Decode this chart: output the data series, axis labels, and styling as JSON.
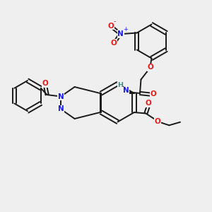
{
  "bg_color": "#efefef",
  "bond_color": "#1a1a1a",
  "atom_colors": {
    "N": "#1a1ae6",
    "O": "#e61a1a",
    "H": "#4a8888",
    "C": "#1a1a1a"
  }
}
